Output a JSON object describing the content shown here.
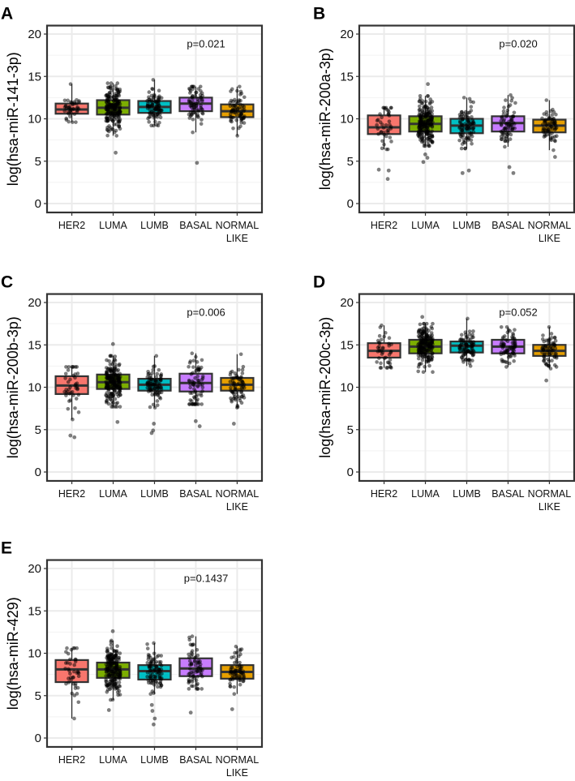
{
  "chart_data": [
    {
      "type": "box",
      "panel_label": "A",
      "ylabel": "log(hsa-miR-141-3p)",
      "annotation": "p=0.021",
      "ylim": [
        0,
        20
      ],
      "yticks": [
        "0",
        "5",
        "10",
        "15",
        "20"
      ],
      "categories": [
        "HER2",
        "LUMA",
        "LUMB",
        "BASAL",
        "NORMAL LIKE"
      ],
      "category_lines": [
        [
          "HER2"
        ],
        [
          "LUMA"
        ],
        [
          "LUMB"
        ],
        [
          "BASAL"
        ],
        [
          "NORMAL",
          "LIKE"
        ]
      ],
      "colors": [
        "#F8766D",
        "#7CAE00",
        "#00BFC4",
        "#C77CFF",
        "#E69F00"
      ],
      "boxes": [
        {
          "q1": 10.6,
          "median": 11.1,
          "q3": 11.8,
          "lo": 9.6,
          "hi": 14.1,
          "outliers": []
        },
        {
          "q1": 10.5,
          "median": 11.3,
          "q3": 12.2,
          "lo": 8.0,
          "hi": 14.2,
          "outliers": [
            6.0
          ]
        },
        {
          "q1": 10.7,
          "median": 11.4,
          "q3": 12.1,
          "lo": 9.2,
          "hi": 14.6,
          "outliers": []
        },
        {
          "q1": 10.9,
          "median": 11.8,
          "q3": 12.5,
          "lo": 8.4,
          "hi": 13.8,
          "outliers": [
            4.8
          ]
        },
        {
          "q1": 10.2,
          "median": 10.9,
          "q3": 11.7,
          "lo": 8.0,
          "hi": 13.8,
          "outliers": []
        }
      ]
    },
    {
      "type": "box",
      "panel_label": "B",
      "ylabel": "log(hsa-miR-200a-3p)",
      "annotation": "p=0.020",
      "ylim": [
        0,
        20
      ],
      "yticks": [
        "0",
        "5",
        "10",
        "15",
        "20"
      ],
      "categories": [
        "HER2",
        "LUMA",
        "LUMB",
        "BASAL",
        "NORMAL LIKE"
      ],
      "category_lines": [
        [
          "HER2"
        ],
        [
          "LUMA"
        ],
        [
          "LUMB"
        ],
        [
          "BASAL"
        ],
        [
          "NORMAL",
          "LIKE"
        ]
      ],
      "colors": [
        "#F8766D",
        "#7CAE00",
        "#00BFC4",
        "#C77CFF",
        "#E69F00"
      ],
      "boxes": [
        {
          "q1": 8.2,
          "median": 9.0,
          "q3": 10.4,
          "lo": 6.4,
          "hi": 11.3,
          "outliers": [
            4.0,
            3.9,
            2.9
          ]
        },
        {
          "q1": 8.5,
          "median": 9.4,
          "q3": 10.3,
          "lo": 6.8,
          "hi": 12.7,
          "outliers": [
            14.1,
            5.8,
            5.4,
            4.9
          ]
        },
        {
          "q1": 8.3,
          "median": 9.2,
          "q3": 10.0,
          "lo": 6.5,
          "hi": 12.5,
          "outliers": [
            3.9,
            3.6
          ]
        },
        {
          "q1": 8.5,
          "median": 9.5,
          "q3": 10.3,
          "lo": 6.7,
          "hi": 12.8,
          "outliers": [
            4.3,
            3.6
          ]
        },
        {
          "q1": 8.4,
          "median": 9.2,
          "q3": 9.9,
          "lo": 6.3,
          "hi": 12.2,
          "outliers": [
            5.5
          ]
        }
      ]
    },
    {
      "type": "box",
      "panel_label": "C",
      "ylabel": "log(hsa-miR-200b-3p)",
      "annotation": "p=0.006",
      "ylim": [
        0,
        20
      ],
      "yticks": [
        "0",
        "5",
        "10",
        "15",
        "20"
      ],
      "categories": [
        "HER2",
        "LUMA",
        "LUMB",
        "BASAL",
        "NORMAL LIKE"
      ],
      "category_lines": [
        [
          "HER2"
        ],
        [
          "LUMA"
        ],
        [
          "LUMB"
        ],
        [
          "BASAL"
        ],
        [
          "NORMAL",
          "LIKE"
        ]
      ],
      "colors": [
        "#F8766D",
        "#7CAE00",
        "#00BFC4",
        "#C77CFF",
        "#E69F00"
      ],
      "boxes": [
        {
          "q1": 9.2,
          "median": 10.2,
          "q3": 11.3,
          "lo": 6.2,
          "hi": 12.4,
          "outliers": [
            4.3,
            4.1
          ]
        },
        {
          "q1": 9.8,
          "median": 10.6,
          "q3": 11.5,
          "lo": 7.7,
          "hi": 13.7,
          "outliers": [
            15.1,
            5.9
          ]
        },
        {
          "q1": 9.6,
          "median": 10.3,
          "q3": 11.0,
          "lo": 7.6,
          "hi": 13.7,
          "outliers": [
            5.7,
            4.9,
            4.6
          ]
        },
        {
          "q1": 9.5,
          "median": 10.5,
          "q3": 11.6,
          "lo": 8.0,
          "hi": 14.0,
          "outliers": [
            6.0,
            5.4
          ]
        },
        {
          "q1": 9.6,
          "median": 10.3,
          "q3": 11.1,
          "lo": 7.6,
          "hi": 13.9,
          "outliers": [
            5.7
          ]
        }
      ]
    },
    {
      "type": "box",
      "panel_label": "D",
      "ylabel": "log(hsa-miR-200c-3p)",
      "annotation": "p=0.052",
      "ylim": [
        0,
        20
      ],
      "yticks": [
        "0",
        "5",
        "10",
        "15",
        "20"
      ],
      "categories": [
        "HER2",
        "LUMA",
        "LUMB",
        "BASAL",
        "NORMAL LIKE"
      ],
      "category_lines": [
        [
          "HER2"
        ],
        [
          "LUMA"
        ],
        [
          "LUMB"
        ],
        [
          "BASAL"
        ],
        [
          "NORMAL",
          "LIKE"
        ]
      ],
      "colors": [
        "#F8766D",
        "#7CAE00",
        "#00BFC4",
        "#C77CFF",
        "#E69F00"
      ],
      "boxes": [
        {
          "q1": 13.5,
          "median": 14.3,
          "q3": 15.2,
          "lo": 12.3,
          "hi": 17.3,
          "outliers": []
        },
        {
          "q1": 14.0,
          "median": 14.8,
          "q3": 15.6,
          "lo": 11.8,
          "hi": 17.5,
          "outliers": [
            18.3
          ]
        },
        {
          "q1": 14.1,
          "median": 14.9,
          "q3": 15.4,
          "lo": 12.5,
          "hi": 18.1,
          "outliers": []
        },
        {
          "q1": 14.0,
          "median": 14.8,
          "q3": 15.6,
          "lo": 12.4,
          "hi": 17.1,
          "outliers": []
        },
        {
          "q1": 13.7,
          "median": 14.3,
          "q3": 15.0,
          "lo": 12.2,
          "hi": 17.1,
          "outliers": [
            10.8
          ]
        }
      ]
    },
    {
      "type": "box",
      "panel_label": "E",
      "ylabel": "log(hsa-miR-429)",
      "annotation": "p=0.1437",
      "ylim": [
        0,
        20
      ],
      "yticks": [
        "0",
        "5",
        "10",
        "15",
        "20"
      ],
      "categories": [
        "HER2",
        "LUMA",
        "LUMB",
        "BASAL",
        "NORMAL LIKE"
      ],
      "category_lines": [
        [
          "HER2"
        ],
        [
          "LUMA"
        ],
        [
          "LUMB"
        ],
        [
          "BASAL"
        ],
        [
          "NORMAL",
          "LIKE"
        ]
      ],
      "colors": [
        "#F8766D",
        "#7CAE00",
        "#00BFC4",
        "#C77CFF",
        "#E69F00"
      ],
      "boxes": [
        {
          "q1": 6.6,
          "median": 8.1,
          "q3": 9.2,
          "lo": 2.3,
          "hi": 10.6,
          "outliers": []
        },
        {
          "q1": 7.1,
          "median": 8.1,
          "q3": 8.9,
          "lo": 4.5,
          "hi": 11.5,
          "outliers": [
            12.6,
            3.3
          ]
        },
        {
          "q1": 6.9,
          "median": 7.9,
          "q3": 8.6,
          "lo": 5.2,
          "hi": 11.2,
          "outliers": [
            3.9,
            3.2,
            2.3,
            1.6
          ]
        },
        {
          "q1": 7.3,
          "median": 8.2,
          "q3": 9.4,
          "lo": 5.8,
          "hi": 12.0,
          "outliers": [
            3.0
          ]
        },
        {
          "q1": 7.0,
          "median": 7.8,
          "q3": 8.6,
          "lo": 5.2,
          "hi": 10.8,
          "outliers": [
            3.4
          ]
        }
      ]
    }
  ]
}
